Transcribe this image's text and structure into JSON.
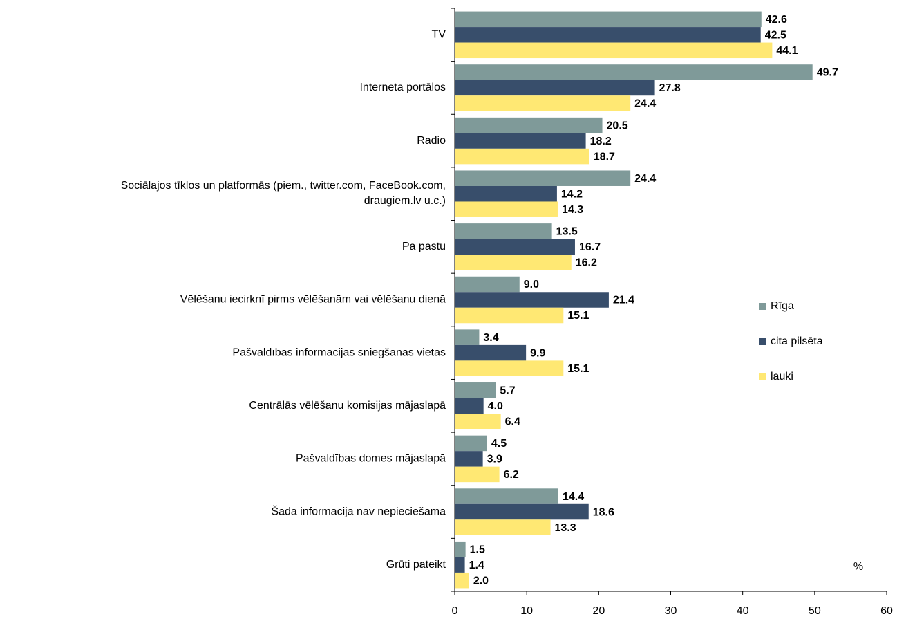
{
  "chart_data": {
    "type": "bar",
    "orientation": "horizontal",
    "categories": [
      "TV",
      "Interneta portālos",
      "Radio",
      [
        "Sociālajos tīklos un platformās (piem., twitter.com, FaceBook.com,",
        "draugiem.lv u.c.)"
      ],
      "Pa pastu",
      "Vēlēšanu iecirknī pirms vēlēšanām vai vēlēšanu dienā",
      "Pašvaldības informācijas sniegšanas vietās",
      "Centrālās vēlēšanu komisijas mājaslapā",
      "Pašvaldības domes mājaslapā",
      "Šāda informācija nav nepieciešama",
      "Grūti pateikt"
    ],
    "series": [
      {
        "name": "Rīga",
        "color": "#7f9a99",
        "values": [
          42.6,
          49.7,
          20.5,
          24.4,
          13.5,
          9.0,
          3.4,
          5.7,
          4.5,
          14.4,
          1.5
        ],
        "value_labels": [
          "42.6",
          "49.7",
          "20.5",
          "24.4",
          "13.5",
          "9.0",
          "3.4",
          "5.7",
          "4.5",
          "14.4",
          "1.5"
        ]
      },
      {
        "name": "cita pilsēta",
        "color": "#384e6b",
        "values": [
          42.5,
          27.8,
          18.2,
          14.2,
          16.7,
          21.4,
          9.9,
          4.0,
          3.9,
          18.6,
          1.4
        ],
        "value_labels": [
          "42.5",
          "27.8",
          "18.2",
          "14.2",
          "16.7",
          "21.4",
          "9.9",
          "4.0",
          "3.9",
          "18.6",
          "1.4"
        ]
      },
      {
        "name": "lauki",
        "color": "#ffe873",
        "values": [
          44.1,
          24.4,
          18.7,
          14.3,
          16.2,
          15.1,
          15.1,
          6.4,
          6.2,
          13.3,
          2.0
        ],
        "value_labels": [
          "44.1",
          "24.4",
          "18.7",
          "14.3",
          "16.2",
          "15.1",
          "15.1",
          "6.4",
          "6.2",
          "13.3",
          "2.0"
        ]
      }
    ],
    "xlabel": "%",
    "xlim": [
      0,
      60
    ],
    "xticks": [
      0,
      10,
      20,
      30,
      40,
      50,
      60
    ],
    "legend": "right"
  }
}
